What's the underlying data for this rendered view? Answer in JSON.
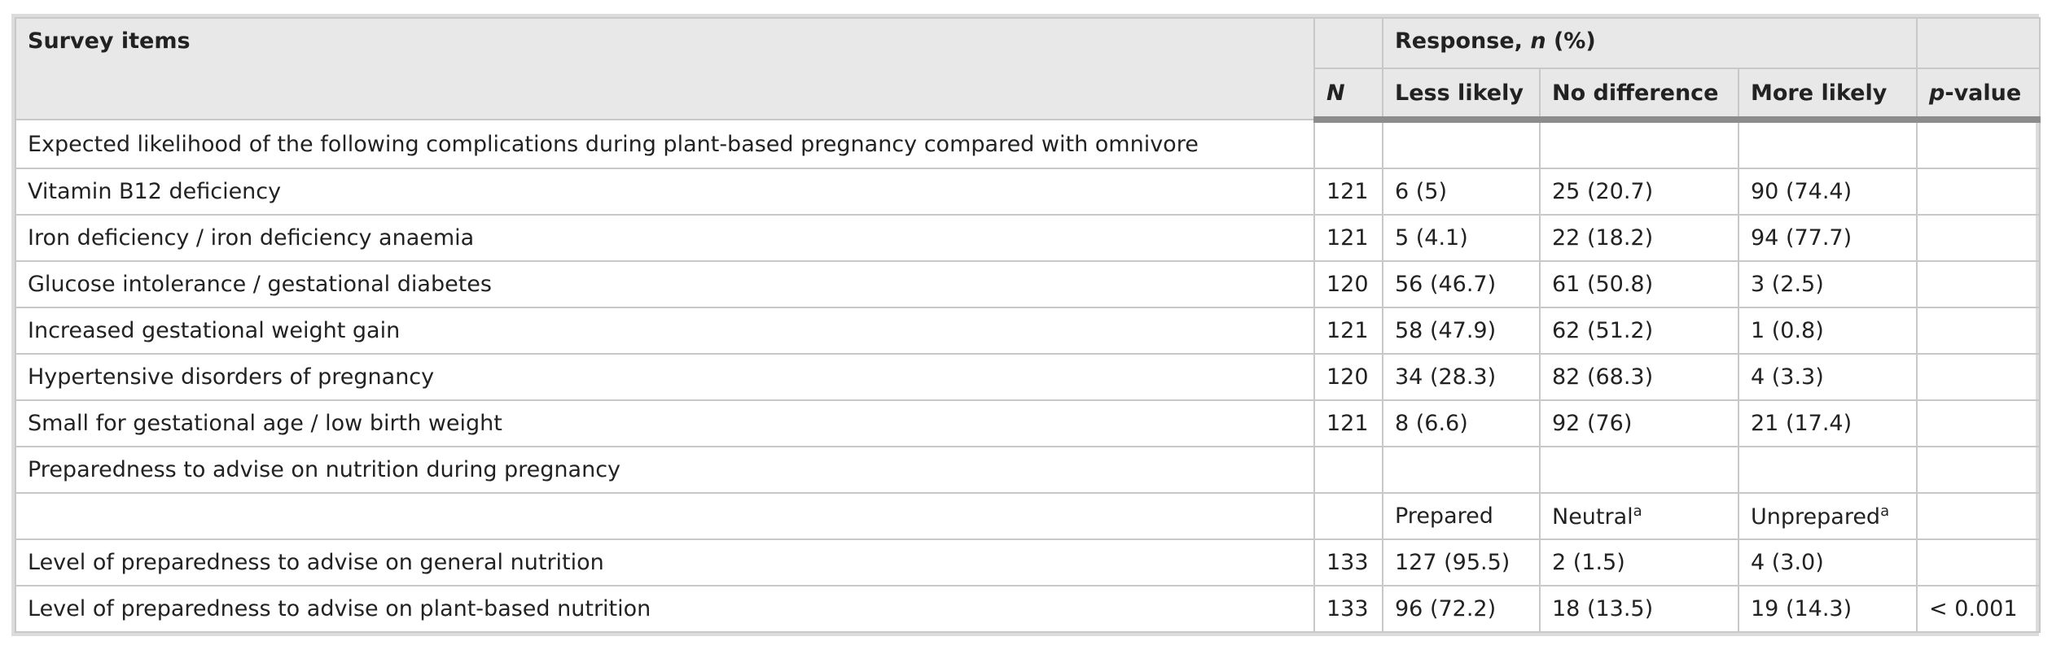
{
  "header": {
    "survey_items": "Survey items",
    "response": [
      "Response, ",
      "n",
      " (%)"
    ],
    "n": "N",
    "less_likely": "Less likely",
    "no_difference": "No difference",
    "more_likely": "More likely",
    "p_value": [
      "p",
      "-value"
    ]
  },
  "rows": [
    [
      "Expected likelihood of the following complications during plant-based pregnancy compared with omnivore",
      null,
      null,
      null,
      null,
      null
    ],
    [
      "Vitamin B12 deficiency",
      "121",
      "6 (5)",
      "25 (20.7)",
      "90 (74.4)",
      null
    ],
    [
      "Iron deficiency / iron deficiency anaemia",
      "121",
      "5 (4.1)",
      "22 (18.2)",
      "94 (77.7)",
      null
    ],
    [
      "Glucose intolerance / gestational diabetes",
      "120",
      "56 (46.7)",
      "61 (50.8)",
      "3 (2.5)",
      null
    ],
    [
      "Increased gestational weight gain",
      "121",
      "58 (47.9)",
      "62 (51.2)",
      "1 (0.8)",
      null
    ],
    [
      "Hypertensive disorders of pregnancy",
      "120",
      "34 (28.3)",
      "82 (68.3)",
      "4 (3.3)",
      null
    ],
    [
      "Small for gestational age / low birth weight",
      "121",
      "8 (6.6)",
      "92 (76)",
      "21 (17.4)",
      null
    ],
    [
      "Preparedness to advise on nutrition during pregnancy",
      null,
      null,
      null,
      null,
      null
    ],
    [
      null,
      null,
      "Prepared",
      {
        "text": "Neutral",
        "sup": "a"
      },
      {
        "text": "Unprepared",
        "sup": "a"
      },
      null
    ],
    [
      "Level of preparedness to advise on general nutrition",
      "133",
      "127 (95.5)",
      "2 (1.5)",
      "4 (3.0)",
      null
    ],
    [
      "Level of preparedness to advise on plant-based nutrition",
      "133",
      "96 (72.2)",
      "18 (13.5)",
      "19 (14.3)",
      "< 0.001"
    ]
  ]
}
